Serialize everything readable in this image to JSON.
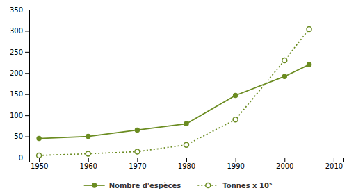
{
  "chart_data": {
    "type": "line",
    "x": [
      1950,
      1960,
      1970,
      1980,
      1990,
      2000,
      2005
    ],
    "series": [
      {
        "name": "Nombre d'espèces",
        "color": "#6b8c21",
        "line_style": "solid",
        "marker": "circle",
        "values": [
          45,
          50,
          65,
          80,
          147,
          192,
          220
        ]
      },
      {
        "name": "Tonnes x 10⁵",
        "color": "#6b8c21",
        "line_style": "dotted",
        "marker": "circle-open",
        "values": [
          5,
          9,
          14,
          30,
          90,
          230,
          304
        ]
      }
    ],
    "xlim": [
      1948,
      2012
    ],
    "xticks": [
      1950,
      1960,
      1970,
      1980,
      1990,
      2000,
      2010
    ],
    "ylim": [
      0,
      350
    ],
    "yticks": [
      0,
      50,
      100,
      150,
      200,
      250,
      300,
      350
    ],
    "grid": false,
    "legend": "bottom"
  }
}
